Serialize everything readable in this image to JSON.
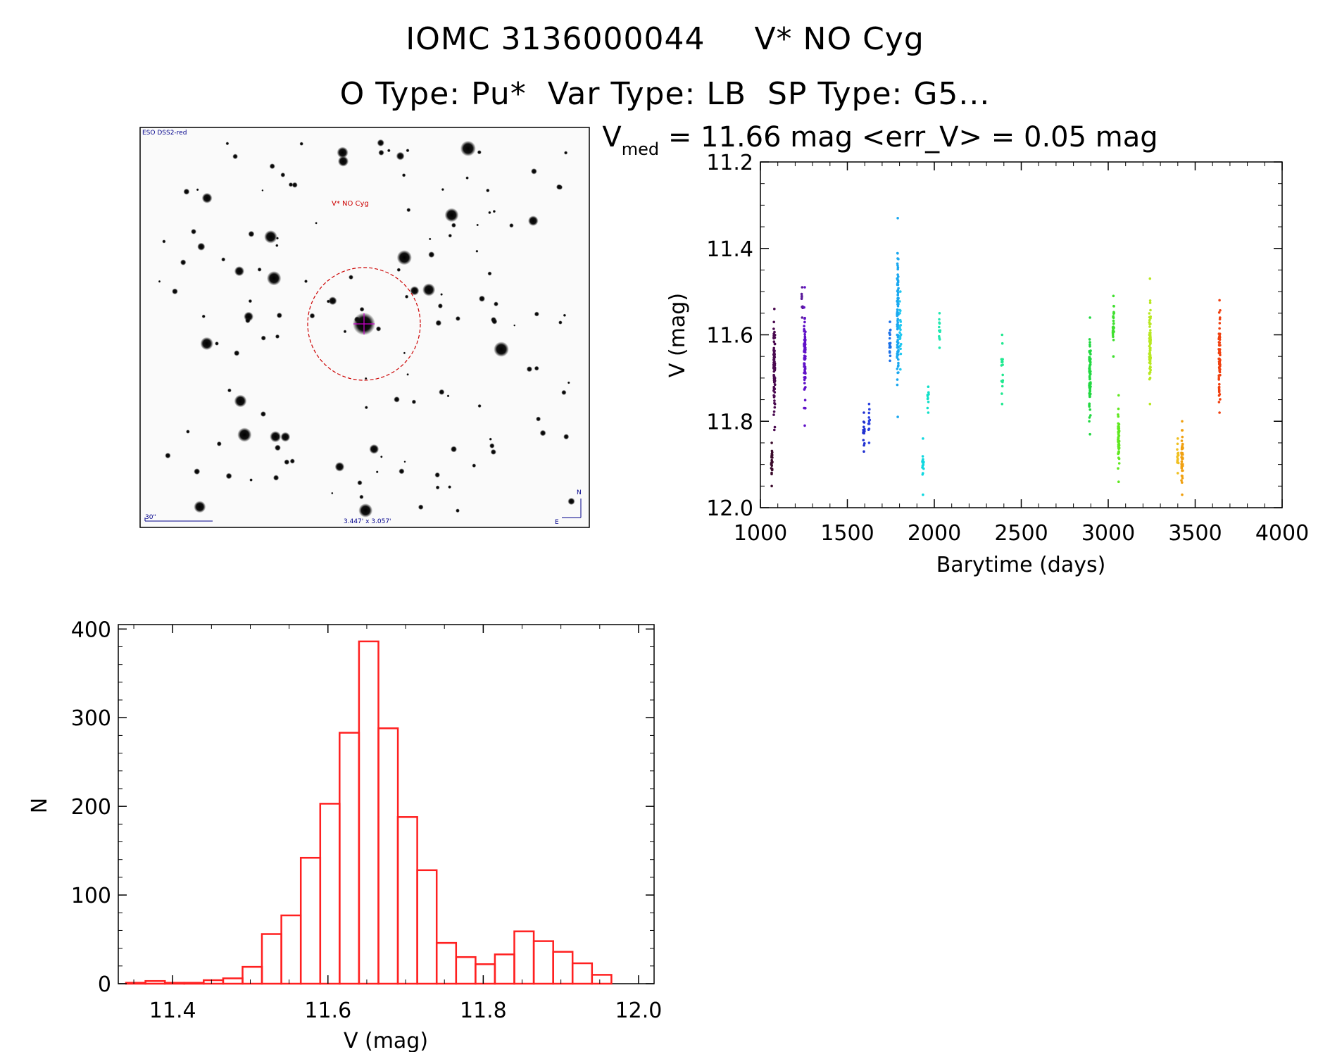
{
  "header": {
    "line1_id": "IOMC 3136000044",
    "line1_name": "V* NO Cyg",
    "line2": "O Type: Pu*  Var Type: LB  SP Type: G5..."
  },
  "finder": {
    "survey_label": "ESO DSS2-red",
    "target_label": "V* NO Cyg",
    "scale_label": "30\"",
    "fov_label": "3.447' x 3.057'",
    "north_label": "N",
    "east_label": "E"
  },
  "colors": {
    "histogram": "#ff2020",
    "circle": "#cc0000",
    "overlay_text": "#00008b",
    "marker": "#cc00cc"
  },
  "chart_data": [
    {
      "type": "scatter",
      "title_prefix": "V",
      "title_subscript": "med",
      "title_rest": " = 11.66 mag <err_V> = 0.05 mag",
      "xlabel": "Barytime (days)",
      "ylabel": "V (mag)",
      "xlim": [
        1000,
        4000
      ],
      "ylim": [
        12.0,
        11.2
      ],
      "y_inverted": true,
      "xticks": [
        1000,
        1500,
        2000,
        2500,
        3000,
        3500,
        4000
      ],
      "yticks": [
        11.2,
        11.4,
        11.6,
        11.8,
        12.0
      ],
      "ytick_labels": [
        "11.2",
        "11.4",
        "11.6",
        "11.8",
        "12.0"
      ],
      "grid": false,
      "groups": [
        {
          "x": 1065,
          "y_min": 11.85,
          "y_max": 11.95,
          "color": "#3a0a2a",
          "n": 22
        },
        {
          "x": 1080,
          "y_min": 11.54,
          "y_max": 11.82,
          "color": "#4a0a50",
          "n": 80
        },
        {
          "x": 1240,
          "y_min": 11.49,
          "y_max": 11.56,
          "color": "#5a1a9a",
          "n": 8
        },
        {
          "x": 1255,
          "y_min": 11.49,
          "y_max": 11.81,
          "color": "#6010c8",
          "n": 70
        },
        {
          "x": 1595,
          "y_min": 11.78,
          "y_max": 11.87,
          "color": "#2030d0",
          "n": 12
        },
        {
          "x": 1625,
          "y_min": 11.76,
          "y_max": 11.85,
          "color": "#2a40e0",
          "n": 10
        },
        {
          "x": 1745,
          "y_min": 11.57,
          "y_max": 11.66,
          "color": "#1a70e8",
          "n": 15
        },
        {
          "x": 1790,
          "y_min": 11.33,
          "y_max": 11.79,
          "color": "#1aa8f0",
          "n": 90
        },
        {
          "x": 1805,
          "y_min": 11.5,
          "y_max": 11.68,
          "color": "#20c8f0",
          "n": 20
        },
        {
          "x": 1935,
          "y_min": 11.84,
          "y_max": 11.97,
          "color": "#10d8e0",
          "n": 14
        },
        {
          "x": 1965,
          "y_min": 11.72,
          "y_max": 11.78,
          "color": "#10e0c8",
          "n": 8
        },
        {
          "x": 2030,
          "y_min": 11.55,
          "y_max": 11.63,
          "color": "#20e8b0",
          "n": 10
        },
        {
          "x": 2390,
          "y_min": 11.6,
          "y_max": 11.76,
          "color": "#20e890",
          "n": 14
        },
        {
          "x": 2895,
          "y_min": 11.56,
          "y_max": 11.83,
          "color": "#20d840",
          "n": 80
        },
        {
          "x": 3030,
          "y_min": 11.51,
          "y_max": 11.65,
          "color": "#40e030",
          "n": 25
        },
        {
          "x": 3060,
          "y_min": 11.74,
          "y_max": 11.94,
          "color": "#60e820",
          "n": 50
        },
        {
          "x": 3240,
          "y_min": 11.47,
          "y_max": 11.76,
          "color": "#b8e820",
          "n": 70
        },
        {
          "x": 3400,
          "y_min": 11.84,
          "y_max": 11.92,
          "color": "#f0c020",
          "n": 14
        },
        {
          "x": 3425,
          "y_min": 11.8,
          "y_max": 11.97,
          "color": "#f0a010",
          "n": 40
        },
        {
          "x": 3640,
          "y_min": 11.52,
          "y_max": 11.78,
          "color": "#f04010",
          "n": 70
        }
      ]
    },
    {
      "type": "bar",
      "histogram": true,
      "xlabel": "V (mag)",
      "ylabel": "N",
      "xlim": [
        11.33,
        12.02
      ],
      "ylim": [
        0,
        405
      ],
      "xticks": [
        11.4,
        11.6,
        11.8,
        12.0
      ],
      "xtick_labels": [
        "11.4",
        "11.6",
        "11.8",
        "12.0"
      ],
      "yticks": [
        0,
        100,
        200,
        300,
        400
      ],
      "bin_width": 0.025,
      "bin_start": 11.34,
      "values": [
        1,
        3,
        1,
        1,
        4,
        6,
        19,
        56,
        77,
        142,
        203,
        283,
        386,
        288,
        188,
        128,
        46,
        30,
        22,
        33,
        59,
        48,
        36,
        23,
        10
      ]
    }
  ]
}
